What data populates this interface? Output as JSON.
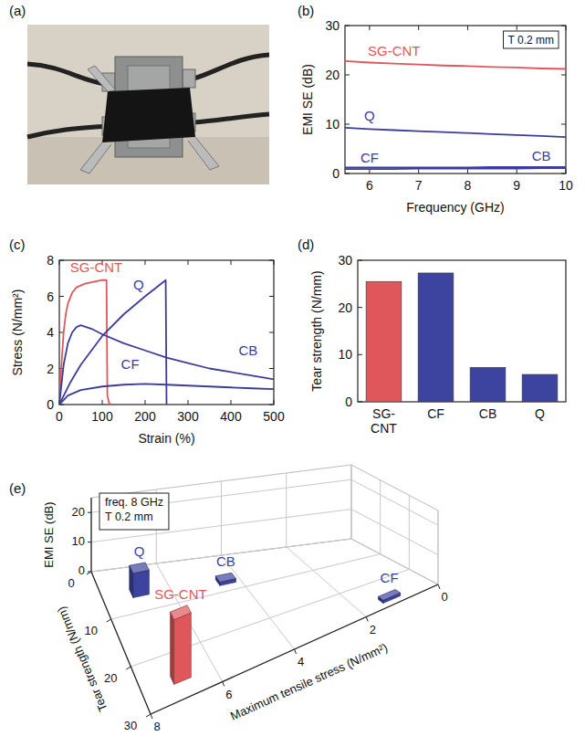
{
  "chart_data": [
    {
      "type": "image",
      "panel": "(a)"
    },
    {
      "type": "line",
      "panel": "(b)",
      "x_label": "Frequency (GHz)",
      "y_label": "EMI SE (dB)",
      "annotations": [
        "T 0.2 mm"
      ],
      "x": [
        5.5,
        6,
        6.5,
        7,
        7.5,
        8,
        8.5,
        9,
        9.5,
        10
      ],
      "series": [
        {
          "name": "SG-CNT",
          "color": "#e0575b",
          "values": [
            22.8,
            22.5,
            22.3,
            22.1,
            21.9,
            21.8,
            21.6,
            21.5,
            21.3,
            21.2
          ]
        },
        {
          "name": "Q",
          "color": "#3c3c9c",
          "values": [
            9.3,
            9.0,
            8.8,
            8.6,
            8.4,
            8.2,
            8.0,
            7.8,
            7.6,
            7.4
          ]
        },
        {
          "name": "CF",
          "color": "#3c3c9c",
          "values": [
            0.9,
            0.9,
            0.9,
            1.0,
            1.0,
            1.0,
            1.0,
            1.0,
            1.1,
            1.1
          ]
        },
        {
          "name": "CB",
          "color": "#3c3c9c",
          "values": [
            1.2,
            1.2,
            1.2,
            1.2,
            1.2,
            1.2,
            1.3,
            1.3,
            1.3,
            1.3
          ]
        }
      ],
      "xlim": [
        5.5,
        10
      ],
      "xticks": [
        6,
        7,
        8,
        9,
        10
      ],
      "ylim": [
        0,
        30
      ],
      "yticks": [
        0,
        10,
        20,
        30
      ]
    },
    {
      "type": "line",
      "panel": "(c)",
      "x_label": "Strain (%)",
      "y_label": "Stress (N/mm²)",
      "series": [
        {
          "name": "SG-CNT",
          "color": "#e0575b",
          "x": [
            0,
            5,
            10,
            15,
            20,
            30,
            40,
            60,
            80,
            100,
            110,
            112,
            116,
            120
          ],
          "values": [
            0,
            2.2,
            4.0,
            5.0,
            5.6,
            6.2,
            6.5,
            6.7,
            6.8,
            6.9,
            6.9,
            0.5,
            0.1,
            0
          ]
        },
        {
          "name": "Q",
          "color": "#3c3c9c",
          "x": [
            0,
            25,
            50,
            100,
            150,
            200,
            248,
            250
          ],
          "values": [
            0,
            1.2,
            2.2,
            3.8,
            5.0,
            6.0,
            6.9,
            0
          ]
        },
        {
          "name": "CF",
          "color": "#3c3c9c",
          "x": [
            0,
            20,
            50,
            100,
            150,
            200,
            250,
            300,
            350,
            400,
            450,
            500
          ],
          "values": [
            0,
            0.5,
            0.8,
            1.0,
            1.1,
            1.15,
            1.1,
            1.05,
            1.0,
            0.95,
            0.9,
            0.85
          ]
        },
        {
          "name": "CB",
          "color": "#3c3c9c",
          "x": [
            0,
            10,
            20,
            30,
            40,
            50,
            75,
            100,
            150,
            200,
            250,
            300,
            350,
            400,
            450,
            500
          ],
          "values": [
            0,
            2.2,
            3.4,
            4.0,
            4.3,
            4.4,
            4.2,
            3.9,
            3.4,
            3.0,
            2.6,
            2.3,
            2.0,
            1.8,
            1.6,
            1.4
          ]
        }
      ],
      "xlim": [
        0,
        500
      ],
      "xticks": [
        0,
        100,
        200,
        300,
        400,
        500
      ],
      "ylim": [
        0,
        8
      ],
      "yticks": [
        0,
        2,
        4,
        6,
        8
      ]
    },
    {
      "type": "bar",
      "panel": "(d)",
      "y_label": "Tear strength (N/mm)",
      "categories": [
        "SG-CNT",
        "CF",
        "CB",
        "Q"
      ],
      "values": [
        25.5,
        27.3,
        7.3,
        5.8
      ],
      "colors": [
        "#e0575b",
        "#3c44a0",
        "#3c44a0",
        "#3c44a0"
      ],
      "ylim": [
        0,
        30
      ],
      "yticks": [
        0,
        10,
        20,
        30
      ]
    },
    {
      "type": "bar3d",
      "panel": "(e)",
      "annotations": [
        "freq. 8 GHz",
        "T 0.2 mm"
      ],
      "x_label": "Maximum tensile stress (N/mm²)",
      "y_label": "Tear strength (N/mm)",
      "z_label": "EMI SE (dB)",
      "categories": [
        "Q",
        "SG-CNT",
        "CF",
        "CB"
      ],
      "colors": [
        "#3c44a0",
        "#e0575b",
        "#3c44a0",
        "#3c44a0"
      ],
      "x": [
        6.9,
        6.9,
        1.15,
        4.4
      ],
      "y": [
        5.8,
        25.5,
        27.3,
        7.3
      ],
      "values": [
        8.2,
        21.8,
        1.0,
        1.2
      ],
      "xlim": [
        0,
        8
      ],
      "xticks": [
        0,
        2,
        4,
        6,
        8
      ],
      "ylim": [
        0,
        30
      ],
      "yticks": [
        0,
        10,
        20,
        30
      ],
      "zlim": [
        0,
        25
      ],
      "zticks": [
        0,
        10,
        20
      ],
      "grid": true
    }
  ]
}
